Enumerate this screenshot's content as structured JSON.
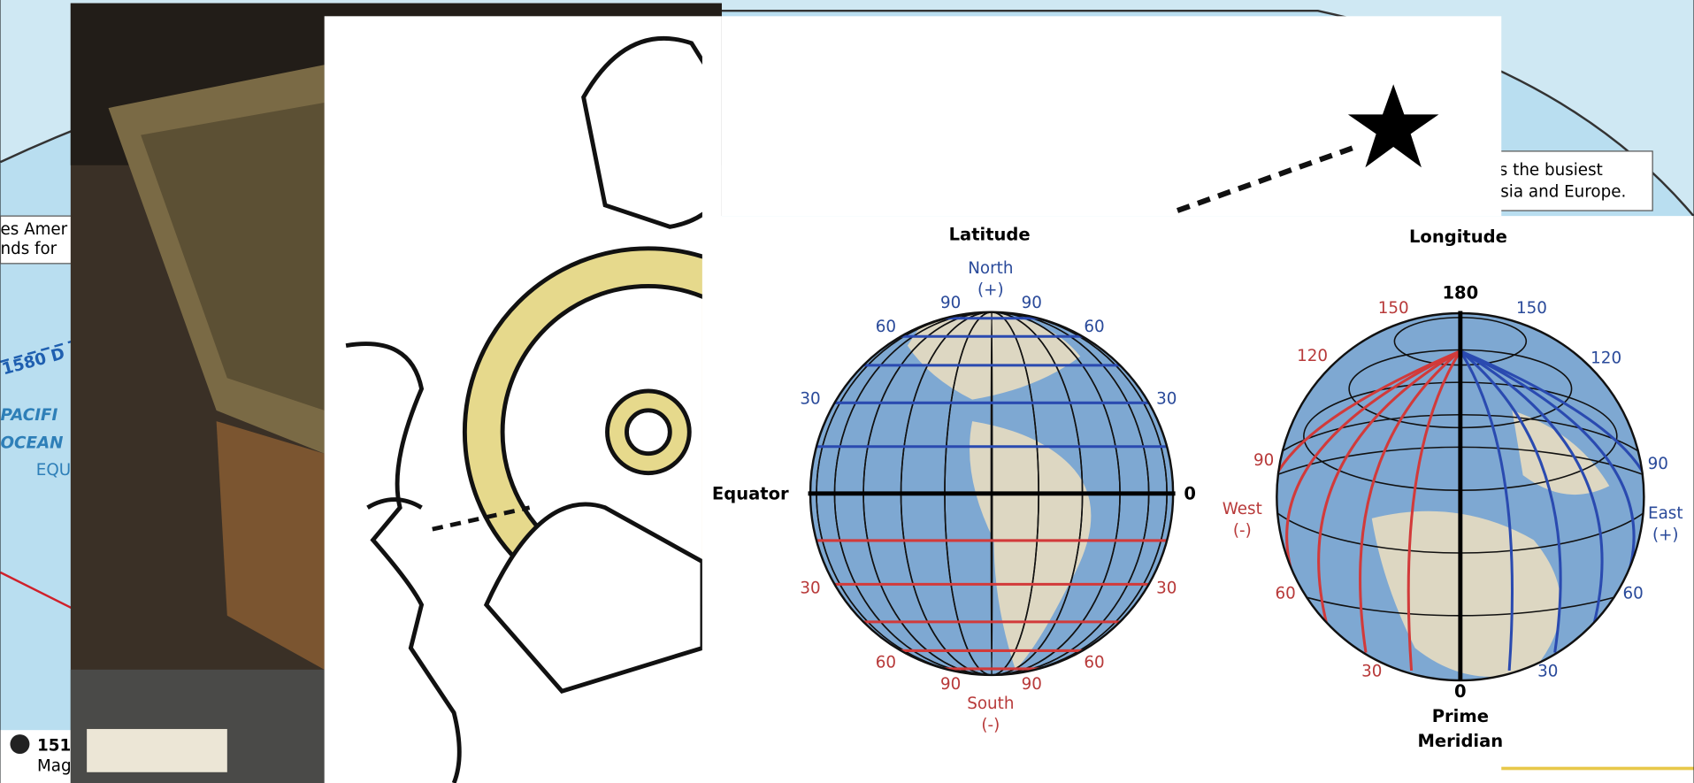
{
  "map_fragments": {
    "left_note": [
      "es Amer",
      "nds for"
    ],
    "route": "1580 D",
    "ocean": [
      "PACIFI",
      "OCEAN"
    ],
    "equator": "EQUA",
    "marker": "151",
    "caption": "Mag",
    "right_note": [
      "s the busiest",
      "asia and Europe."
    ]
  },
  "latitude_globe": {
    "title": "Latitude",
    "north": "North",
    "north_sign": "(+)",
    "south": "South",
    "south_sign": "(-)",
    "equator": "Equator",
    "equator_value": "0",
    "labels": [
      "90",
      "90",
      "60",
      "60",
      "30",
      "30",
      "30",
      "30",
      "60",
      "60",
      "90",
      "90"
    ]
  },
  "longitude_globe": {
    "title": "Longitude",
    "top": "180",
    "bottom": "0",
    "meridian": [
      "Prime",
      "Meridian"
    ],
    "west": "West",
    "west_sign": "(-)",
    "east": "East",
    "east_sign": "(+)",
    "labels": [
      "150",
      "150",
      "120",
      "120",
      "90",
      "90",
      "60",
      "60",
      "30",
      "30"
    ]
  }
}
